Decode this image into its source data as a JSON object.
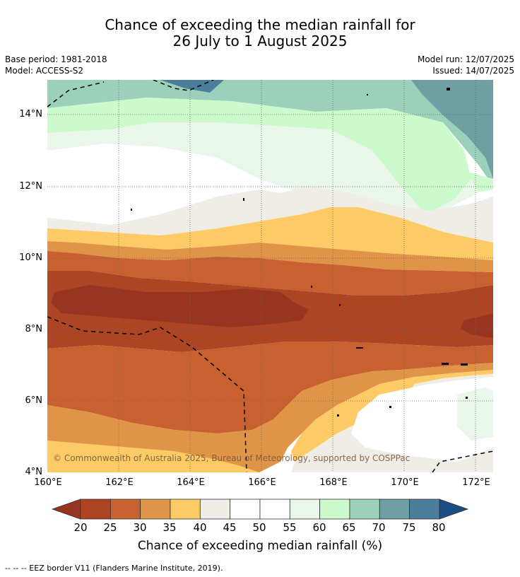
{
  "title": {
    "line1": "Chance of exceeding the median rainfall for",
    "line2": "26 July to 1 August 2025"
  },
  "meta": {
    "base_period": "Base period: 1981-2018",
    "model": "Model: ACCESS-S2",
    "model_run": "Model run: 12/07/2025",
    "issued": "Issued: 14/07/2025"
  },
  "axes": {
    "lat_labels": [
      "14°N",
      "12°N",
      "10°N",
      "8°N",
      "6°N",
      "4°N"
    ],
    "lon_labels": [
      "160°E",
      "162°E",
      "164°E",
      "166°E",
      "168°E",
      "170°E",
      "172°E"
    ]
  },
  "copyright": "© Commonwealth of Australia 2025, Bureau of Meteorology, supported by COSPPac",
  "colorbar": {
    "ticks": [
      "20",
      "25",
      "30",
      "35",
      "40",
      "45",
      "50",
      "55",
      "60",
      "65",
      "70",
      "75",
      "80"
    ],
    "label": "Chance of exceeding median rainfall (%)",
    "colors": {
      "lt20": "#983520",
      "c20_25": "#ad4424",
      "c25_30": "#c8602f",
      "c30_35": "#e09447",
      "c35_40": "#fdcb66",
      "c40_45": "#f0ece6",
      "c45_50": "#ffffff",
      "c50_55": "#ffffff",
      "c55_60": "#eaf6ea",
      "c60_65": "#ccfacd",
      "c65_70": "#9bd1bb",
      "c70_75": "#6ea0a3",
      "c75_80": "#4a7e9a",
      "gt80": "#1a4e80"
    }
  },
  "footer": "-- -- -- EEZ border V11 (Flanders Marine Institute, 2019)."
}
